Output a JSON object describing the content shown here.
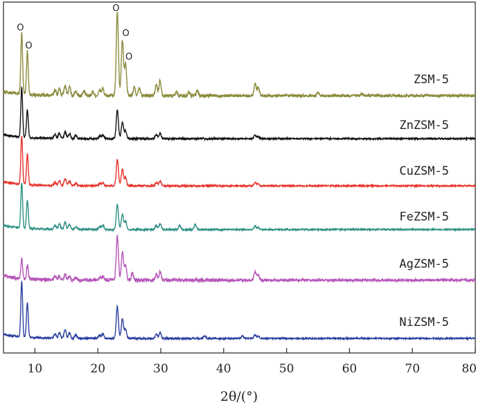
{
  "chart_data": {
    "type": "line",
    "xlabel": "2θ/(°)",
    "ylabel": "",
    "xlim": [
      5,
      80
    ],
    "x_ticks": [
      10,
      20,
      30,
      40,
      50,
      60,
      70,
      80
    ],
    "y_ticks_shown": false,
    "grid": false,
    "legend": "labels at right end of each stacked trace",
    "peak_markers": [
      {
        "x": 7.9,
        "series": "ZSM-5",
        "label": "O"
      },
      {
        "x": 8.8,
        "series": "ZSM-5",
        "label": "O"
      },
      {
        "x": 23.1,
        "series": "ZSM-5",
        "label": "O"
      },
      {
        "x": 23.9,
        "series": "ZSM-5",
        "label": "O"
      },
      {
        "x": 24.4,
        "series": "ZSM-5",
        "label": "O"
      }
    ],
    "series": [
      {
        "name": "ZSM-5",
        "color": "#8a8a3c",
        "intensity_scale": 1.0,
        "peaks": [
          [
            7.9,
            88
          ],
          [
            8.8,
            62
          ],
          [
            13.2,
            8
          ],
          [
            13.9,
            10
          ],
          [
            14.8,
            14
          ],
          [
            15.5,
            12
          ],
          [
            16.5,
            7
          ],
          [
            17.8,
            6
          ],
          [
            19.2,
            6
          ],
          [
            20.3,
            8
          ],
          [
            20.8,
            10
          ],
          [
            23.1,
            122
          ],
          [
            23.9,
            80
          ],
          [
            24.4,
            46
          ],
          [
            25.8,
            12
          ],
          [
            26.6,
            10
          ],
          [
            29.3,
            16
          ],
          [
            29.9,
            22
          ],
          [
            32.5,
            6
          ],
          [
            34.5,
            5
          ],
          [
            35.8,
            7
          ],
          [
            45.0,
            18
          ],
          [
            45.5,
            12
          ],
          [
            55.0,
            5
          ],
          [
            62.0,
            3
          ]
        ]
      },
      {
        "name": "ZnZSM-5",
        "color": "#111111",
        "intensity_scale": 1.0,
        "peaks": [
          [
            7.9,
            72
          ],
          [
            8.8,
            40
          ],
          [
            13.2,
            6
          ],
          [
            13.9,
            8
          ],
          [
            14.8,
            10
          ],
          [
            15.5,
            7
          ],
          [
            16.5,
            5
          ],
          [
            20.3,
            4
          ],
          [
            20.8,
            5
          ],
          [
            23.1,
            42
          ],
          [
            23.9,
            24
          ],
          [
            24.4,
            12
          ],
          [
            29.3,
            6
          ],
          [
            29.9,
            8
          ],
          [
            45.0,
            5
          ],
          [
            45.5,
            3
          ]
        ]
      },
      {
        "name": "CuZSM-5",
        "color": "#e8312a",
        "intensity_scale": 1.0,
        "peaks": [
          [
            7.9,
            70
          ],
          [
            8.8,
            44
          ],
          [
            13.2,
            5
          ],
          [
            13.9,
            7
          ],
          [
            14.8,
            10
          ],
          [
            15.5,
            7
          ],
          [
            16.5,
            4
          ],
          [
            20.3,
            4
          ],
          [
            20.8,
            5
          ],
          [
            23.1,
            38
          ],
          [
            23.9,
            24
          ],
          [
            24.4,
            12
          ],
          [
            29.3,
            5
          ],
          [
            29.9,
            7
          ],
          [
            45.0,
            5
          ],
          [
            45.5,
            3
          ]
        ]
      },
      {
        "name": "FeZSM-5",
        "color": "#2c8f84",
        "intensity_scale": 1.0,
        "peaks": [
          [
            7.9,
            66
          ],
          [
            8.8,
            40
          ],
          [
            13.2,
            6
          ],
          [
            13.9,
            8
          ],
          [
            14.8,
            10
          ],
          [
            15.5,
            7
          ],
          [
            16.5,
            4
          ],
          [
            20.3,
            4
          ],
          [
            20.8,
            6
          ],
          [
            23.1,
            36
          ],
          [
            23.9,
            22
          ],
          [
            24.4,
            12
          ],
          [
            29.3,
            6
          ],
          [
            29.9,
            8
          ],
          [
            33.0,
            6
          ],
          [
            35.5,
            7
          ],
          [
            45.0,
            5
          ],
          [
            45.5,
            3
          ]
        ]
      },
      {
        "name": "AgZSM-5",
        "color": "#b556b8",
        "intensity_scale": 1.0,
        "peaks": [
          [
            7.9,
            28
          ],
          [
            8.8,
            20
          ],
          [
            13.2,
            5
          ],
          [
            13.9,
            6
          ],
          [
            14.8,
            8
          ],
          [
            15.5,
            6
          ],
          [
            16.5,
            4
          ],
          [
            20.3,
            4
          ],
          [
            20.8,
            5
          ],
          [
            23.1,
            64
          ],
          [
            23.9,
            40
          ],
          [
            24.4,
            22
          ],
          [
            25.5,
            10
          ],
          [
            29.3,
            8
          ],
          [
            29.9,
            12
          ],
          [
            45.0,
            12
          ],
          [
            45.5,
            8
          ]
        ]
      },
      {
        "name": "NiZSM-5",
        "color": "#2b3f9e",
        "intensity_scale": 1.0,
        "peaks": [
          [
            7.9,
            80
          ],
          [
            8.8,
            50
          ],
          [
            13.2,
            6
          ],
          [
            13.9,
            8
          ],
          [
            14.8,
            12
          ],
          [
            15.5,
            8
          ],
          [
            16.5,
            5
          ],
          [
            20.3,
            5
          ],
          [
            20.8,
            6
          ],
          [
            23.1,
            46
          ],
          [
            23.9,
            28
          ],
          [
            24.4,
            14
          ],
          [
            29.3,
            6
          ],
          [
            29.9,
            8
          ],
          [
            37.0,
            4
          ],
          [
            43.0,
            4
          ],
          [
            45.0,
            5
          ],
          [
            45.5,
            3
          ]
        ]
      }
    ]
  }
}
